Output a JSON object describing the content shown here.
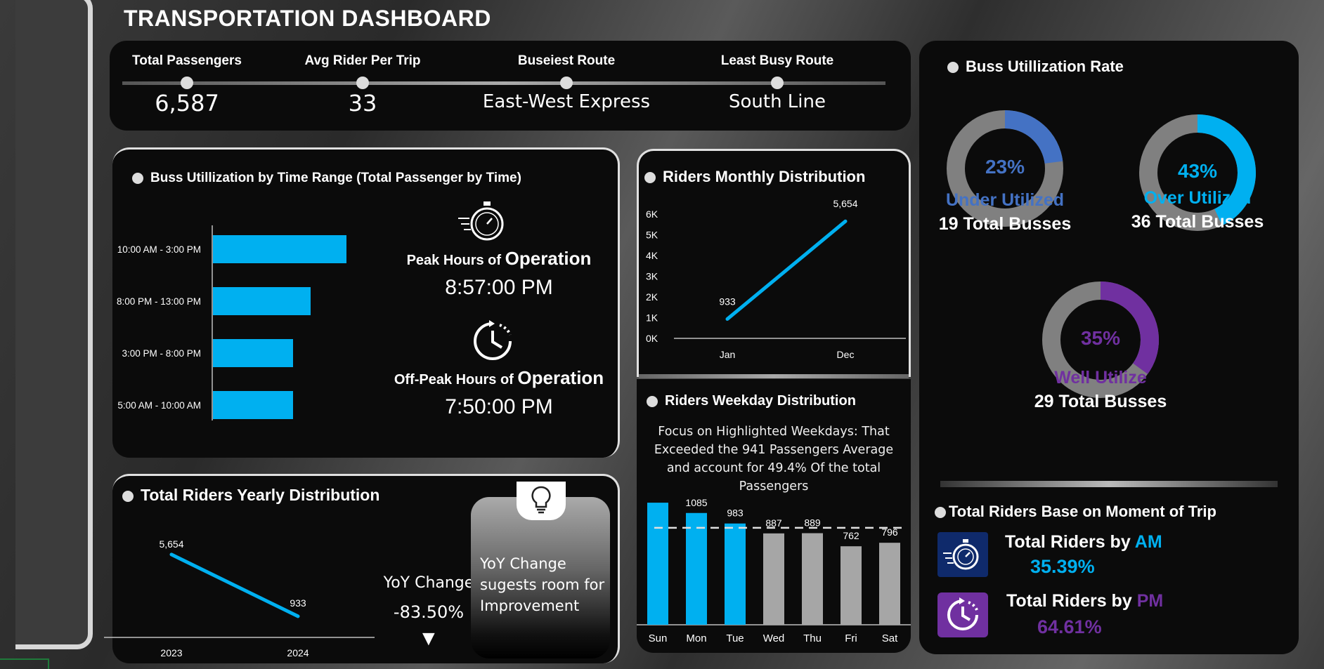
{
  "title": "TRANSPORTATION DASHBOARD",
  "kpis": [
    {
      "label": "Total Passengers",
      "value": "6,587"
    },
    {
      "label": "Avg Rider Per Trip",
      "value": "33"
    },
    {
      "label": "Buseiest Route",
      "value": "East-West Express"
    },
    {
      "label": "Least Busy Route",
      "value": "South Line"
    }
  ],
  "time_range": {
    "title": "Buss Utillization by Time Range (Total Passenger by Time)",
    "peak_prefix": "Peak Hours of ",
    "peak_suffix": "Operation",
    "peak_value": "8:57:00 PM",
    "offpeak_prefix": "Off-Peak Hours of ",
    "offpeak_suffix": "Operation",
    "offpeak_value": "7:50:00 PM",
    "icons": [
      "stopwatch-icon",
      "clock-icon"
    ]
  },
  "yearly": {
    "title": "Total Riders Yearly Distribution",
    "yoy_label": "YoY Change",
    "yoy_value": "-83.50%",
    "arrow": "▼",
    "note": "YoY Change sugests room for Improvement",
    "icon": "lightbulb-icon"
  },
  "monthly": {
    "title": "Riders Monthly Distribution"
  },
  "weekday": {
    "title": "Riders Weekday Distribution",
    "note": "Focus on Highlighted Weekdays: That Exceeded the  941 Passengers Average and account for  49.4% Of the total Passengers"
  },
  "utilization": {
    "title": "Buss Utillization Rate",
    "donuts": [
      {
        "pct": "23%",
        "label": "Under Utilized",
        "count": "19 Total Busses",
        "color": "#4472c4",
        "fraction": 0.23
      },
      {
        "pct": "43%",
        "label": "Over Utilized",
        "count": "36 Total Busses",
        "color": "#00b0f0",
        "fraction": 0.43
      },
      {
        "pct": "35%",
        "label": "Well Utilize",
        "count": "29 Total Busses",
        "color": "#7030a0",
        "fraction": 0.35
      }
    ],
    "track_color": "#808080"
  },
  "moment": {
    "title": "Total Riders Base on Moment of Trip",
    "am_prefix": "Total Riders by ",
    "am_suffix": "AM",
    "am_value": "35.39%",
    "pm_prefix": "Total Riders by ",
    "pm_suffix": "PM",
    "pm_value": "64.61%",
    "icons": [
      "stopwatch-icon",
      "clock-icon"
    ]
  },
  "colors": {
    "accent": "#00b0f0",
    "purple": "#7030a0",
    "gray_bar": "#a6a6a6"
  },
  "chart_data": [
    {
      "type": "bar",
      "orientation": "horizontal",
      "categories": [
        "10:00 AM - 3:00 PM",
        "8:00 PM - 13:00 PM",
        "3:00 PM - 8:00 PM",
        "5:00 AM - 10:00 AM"
      ],
      "values": [
        1900,
        1390,
        1140,
        1140
      ],
      "xlim": [
        0,
        3400
      ]
    },
    {
      "type": "line",
      "x": [
        "Jan",
        "Dec"
      ],
      "values": [
        933,
        5654
      ],
      "data_labels": [
        "933",
        "5,654"
      ],
      "yticks": [
        "0K",
        "1K",
        "2K",
        "3K",
        "4K",
        "5K",
        "6K"
      ],
      "ylim": [
        0,
        6000
      ]
    },
    {
      "type": "line",
      "x": [
        "2023",
        "2024"
      ],
      "values": [
        5654,
        933
      ],
      "data_labels": [
        "5,654",
        "933"
      ],
      "ylim": [
        0,
        6000
      ]
    },
    {
      "type": "bar",
      "categories": [
        "Sun",
        "Mon",
        "Tue",
        "Wed",
        "Thu",
        "Fri",
        "Sat"
      ],
      "values": [
        1185,
        1085,
        983,
        887,
        889,
        762,
        796
      ],
      "highlighted": [
        true,
        true,
        true,
        false,
        false,
        false,
        false
      ],
      "average": 941,
      "ylim": [
        0,
        1300
      ]
    }
  ]
}
